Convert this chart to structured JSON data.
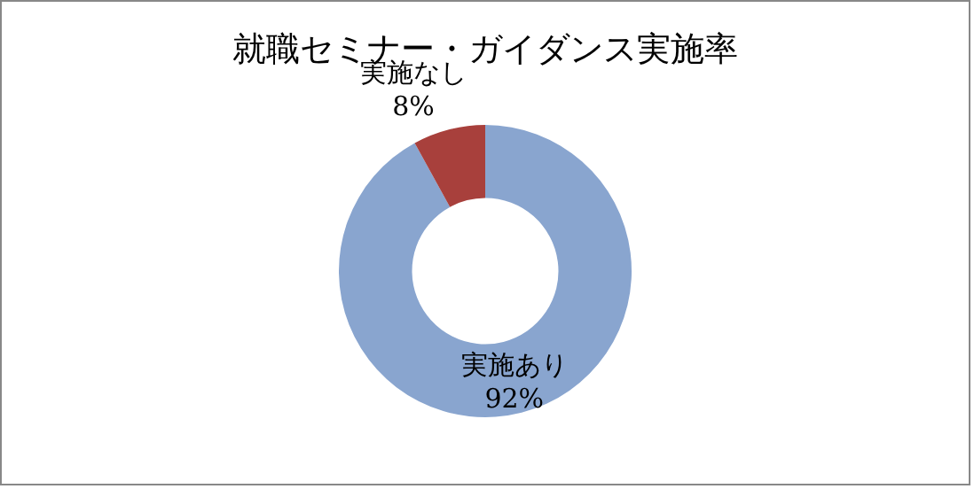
{
  "chart_data": {
    "type": "donut",
    "title": "就職セミナー・ガイダンス実施率",
    "categories": [
      "実施あり",
      "実施なし"
    ],
    "values": [
      92,
      8
    ],
    "colors": [
      "#89a5cf",
      "#a8403c"
    ],
    "value_labels": [
      "92%",
      "8%"
    ],
    "legend": false
  }
}
